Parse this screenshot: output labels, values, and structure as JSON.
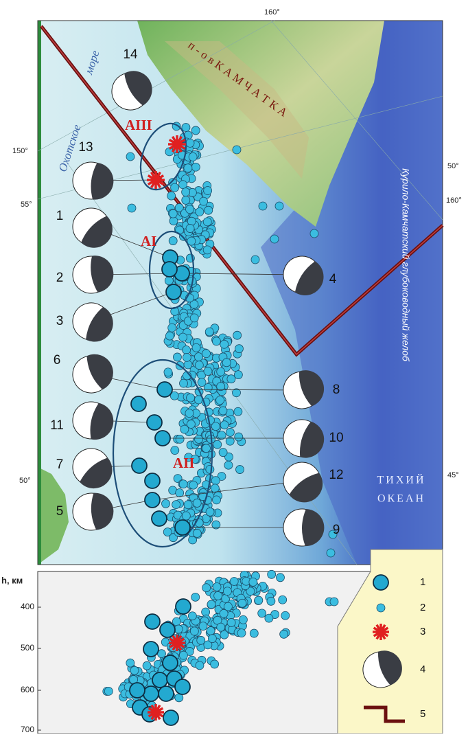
{
  "map": {
    "graticule": {
      "top": [
        "160°"
      ],
      "left": [
        "150°",
        "55°",
        "50°"
      ],
      "right": [
        "50°",
        "160°",
        "45°"
      ]
    },
    "places": {
      "peninsula": "п - о в   К А М Ч А Т К А",
      "sea_1": "Охотское",
      "sea_2": "море",
      "trench": "Курило-Камчатский глубоководный желоб",
      "ocean_1": "ТИХИЙ",
      "ocean_2": "ОКЕАН"
    },
    "zones": [
      "AIII",
      "AI",
      "AII"
    ],
    "mechanisms": [
      "14",
      "13",
      "1",
      "2",
      "3",
      "6",
      "11",
      "7",
      "5",
      "4",
      "8",
      "10",
      "12",
      "9"
    ]
  },
  "section": {
    "axis_label": "h, км",
    "ticks": [
      "400",
      "500",
      "600",
      "700"
    ]
  },
  "legend": {
    "items": [
      "1",
      "2",
      "3",
      "4",
      "5"
    ]
  }
}
